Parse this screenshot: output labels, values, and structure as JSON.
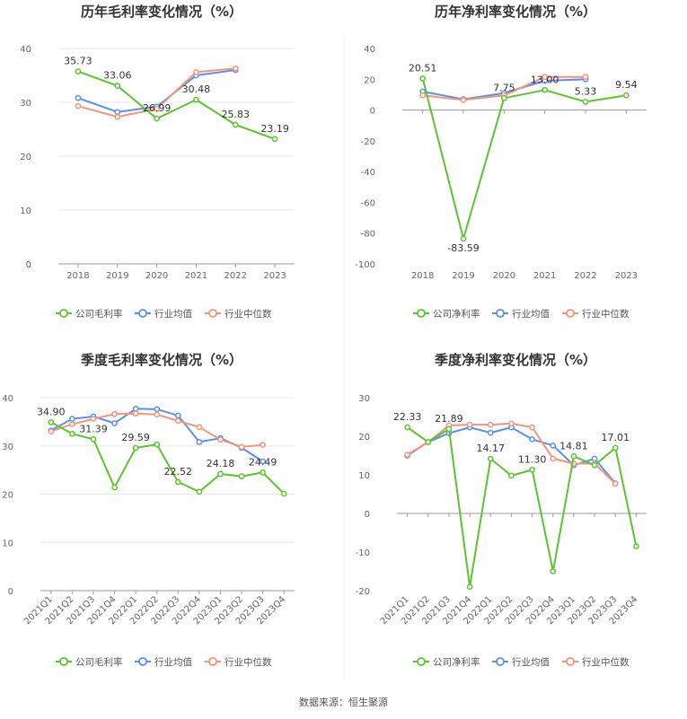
{
  "source_note": "数据来源：恒生聚源",
  "colors": {
    "company": "#5cc42f",
    "industry_avg": "#5b8ff0",
    "industry_median": "#f4947a",
    "grid": "#e8e8e8",
    "axis": "#999999"
  },
  "chart_data": [
    {
      "type": "line",
      "title": "历年毛利率变化情况（%）",
      "categories": [
        "2018",
        "2019",
        "2020",
        "2021",
        "2022",
        "2023"
      ],
      "ylim": [
        0,
        40
      ],
      "yticks": [
        0,
        10,
        20,
        30,
        40
      ],
      "grid": true,
      "legend_position": "bottom",
      "series": [
        {
          "name": "公司毛利率",
          "values": [
            35.73,
            33.06,
            26.99,
            30.48,
            25.83,
            23.19
          ],
          "labels": [
            "35.73",
            "33.06",
            "26.99",
            "30.48",
            "25.83",
            "23.19"
          ]
        },
        {
          "name": "行业均值",
          "values": [
            30.8,
            28.2,
            29.2,
            35.0,
            36.0,
            null
          ]
        },
        {
          "name": "行业中位数",
          "values": [
            29.3,
            27.3,
            28.8,
            35.6,
            36.3,
            null
          ]
        }
      ]
    },
    {
      "type": "line",
      "title": "历年净利率变化情况（%）",
      "categories": [
        "2018",
        "2019",
        "2020",
        "2021",
        "2022",
        "2023"
      ],
      "ylim": [
        -100,
        40
      ],
      "yticks": [
        -100,
        -80,
        -60,
        -40,
        -20,
        0,
        20,
        40
      ],
      "grid": false,
      "legend_position": "bottom",
      "series": [
        {
          "name": "公司净利率",
          "values": [
            20.51,
            -83.59,
            7.75,
            13.0,
            5.33,
            9.54
          ],
          "labels": [
            "20.51",
            "-83.59",
            "7.75",
            "13.00",
            "5.33",
            "9.54"
          ]
        },
        {
          "name": "行业均值",
          "values": [
            12.0,
            7.0,
            11.0,
            19.0,
            20.0,
            null
          ]
        },
        {
          "name": "行业中位数",
          "values": [
            9.5,
            6.5,
            9.5,
            21.5,
            21.5,
            null
          ]
        }
      ]
    },
    {
      "type": "line",
      "title": "季度毛利率变化情况（%）",
      "categories": [
        "2021Q1",
        "2021Q2",
        "2021Q3",
        "2021Q4",
        "2022Q1",
        "2022Q2",
        "2022Q3",
        "2022Q4",
        "2023Q1",
        "2023Q2",
        "2023Q3",
        "2023Q4"
      ],
      "ylim": [
        0,
        40
      ],
      "yticks": [
        0,
        10,
        20,
        30,
        40
      ],
      "grid": true,
      "legend_position": "bottom",
      "series": [
        {
          "name": "公司毛利率",
          "values": [
            34.9,
            32.5,
            31.39,
            21.4,
            29.59,
            30.3,
            22.52,
            20.5,
            24.18,
            23.7,
            24.49,
            20.1
          ],
          "labels": [
            "34.90",
            "",
            "31.39",
            "",
            "29.59",
            "",
            "22.52",
            "",
            "24.18",
            "",
            "24.49",
            ""
          ]
        },
        {
          "name": "行业均值",
          "values": [
            33.2,
            35.6,
            36.1,
            34.7,
            37.7,
            37.6,
            36.3,
            30.8,
            31.6,
            29.6,
            26.8,
            null
          ]
        },
        {
          "name": "行业中位数",
          "values": [
            33.0,
            34.5,
            35.6,
            36.6,
            36.7,
            36.5,
            35.2,
            33.9,
            31.3,
            29.8,
            30.2,
            null
          ]
        }
      ]
    },
    {
      "type": "line",
      "title": "季度净利率变化情况（%）",
      "categories": [
        "2021Q1",
        "2021Q2",
        "2021Q3",
        "2021Q4",
        "2022Q1",
        "2022Q2",
        "2022Q3",
        "2022Q4",
        "2023Q1",
        "2023Q2",
        "2023Q3",
        "2023Q4"
      ],
      "ylim": [
        -20,
        30
      ],
      "yticks": [
        -20,
        -10,
        0,
        10,
        20,
        30
      ],
      "grid": false,
      "legend_position": "bottom",
      "series": [
        {
          "name": "公司净利率",
          "values": [
            22.33,
            18.5,
            21.89,
            -19.0,
            14.17,
            9.8,
            11.3,
            -15.0,
            14.81,
            12.5,
            17.01,
            -8.5
          ],
          "labels": [
            "22.33",
            "",
            "21.89",
            "",
            "14.17",
            "",
            "11.30",
            "",
            "14.81",
            "",
            "17.01",
            ""
          ]
        },
        {
          "name": "行业均值",
          "values": [
            15.0,
            18.5,
            20.8,
            22.3,
            20.9,
            22.3,
            19.2,
            17.6,
            12.5,
            14.2,
            7.8,
            null
          ]
        },
        {
          "name": "行业中位数",
          "values": [
            15.2,
            18.5,
            22.8,
            23.0,
            23.0,
            23.3,
            22.3,
            14.2,
            12.9,
            12.9,
            7.7,
            null
          ]
        }
      ]
    }
  ]
}
